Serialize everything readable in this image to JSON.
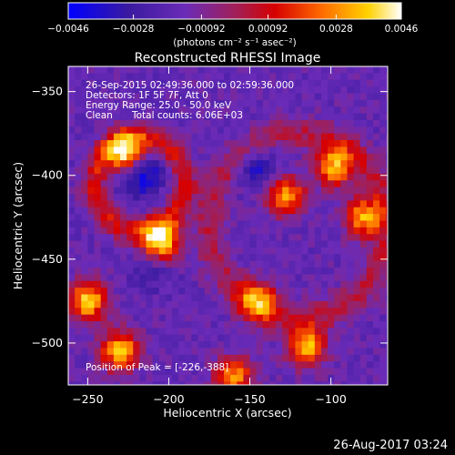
{
  "chart_data": {
    "type": "heatmap",
    "title": "Reconstructed RHESSI Image",
    "xlabel": "Heliocentric X (arcsec)",
    "ylabel": "Heliocentric Y (arcsec)",
    "xlim": [
      -262,
      -65
    ],
    "ylim": [
      -525,
      -335
    ],
    "xticks": [
      -250,
      -200,
      -150,
      -100
    ],
    "yticks": [
      -350,
      -400,
      -450,
      -500
    ],
    "colorbar": {
      "label": "(photons cm⁻² s⁻¹ asec⁻²)",
      "ticks": [
        -0.0046,
        -0.0028,
        -0.00092,
        0.00092,
        0.0028,
        0.0046
      ],
      "tick_labels": [
        "−0.0046",
        "−0.0028",
        "−0.00092",
        "0.00092",
        "0.0028",
        "0.0046"
      ],
      "range": [
        -0.0046,
        0.0046
      ],
      "colors": [
        "#0000ff",
        "#4b0082",
        "#8a2be2",
        "#b0005a",
        "#e00000",
        "#ff7a00",
        "#ffd000",
        "#ffffff"
      ]
    },
    "sources": [
      {
        "x": -226,
        "y": -388,
        "value": 0.0046
      },
      {
        "x": -205,
        "y": -440,
        "value": 0.0042
      },
      {
        "x": -250,
        "y": -475,
        "value": 0.0038
      },
      {
        "x": -230,
        "y": -505,
        "value": 0.0036
      },
      {
        "x": -128,
        "y": -412,
        "value": 0.003
      },
      {
        "x": -98,
        "y": -395,
        "value": 0.0032
      },
      {
        "x": -80,
        "y": -425,
        "value": 0.003
      },
      {
        "x": -115,
        "y": -502,
        "value": 0.0034
      },
      {
        "x": -160,
        "y": -520,
        "value": 0.0028
      },
      {
        "x": -145,
        "y": -475,
        "value": 0.0026
      }
    ],
    "holes": [
      {
        "x": -218,
        "y": -398,
        "value": -0.0046
      },
      {
        "x": -145,
        "y": -395,
        "value": -0.003
      },
      {
        "x": -210,
        "y": -455,
        "value": -0.0024
      }
    ],
    "annotations": {
      "time": "26-Sep-2015 02:49:36.000 to 02:59:36.000",
      "detectors": "Detectors: 1F 5F 7F, Att 0",
      "energy": "Energy Range: 25.0 - 50.0 keV",
      "method": "Clean",
      "counts": "Total counts: 6.06E+03",
      "peak": "Position of Peak = [-226,-388]"
    }
  },
  "footer": {
    "date": "26-Aug-2017 03:24"
  }
}
